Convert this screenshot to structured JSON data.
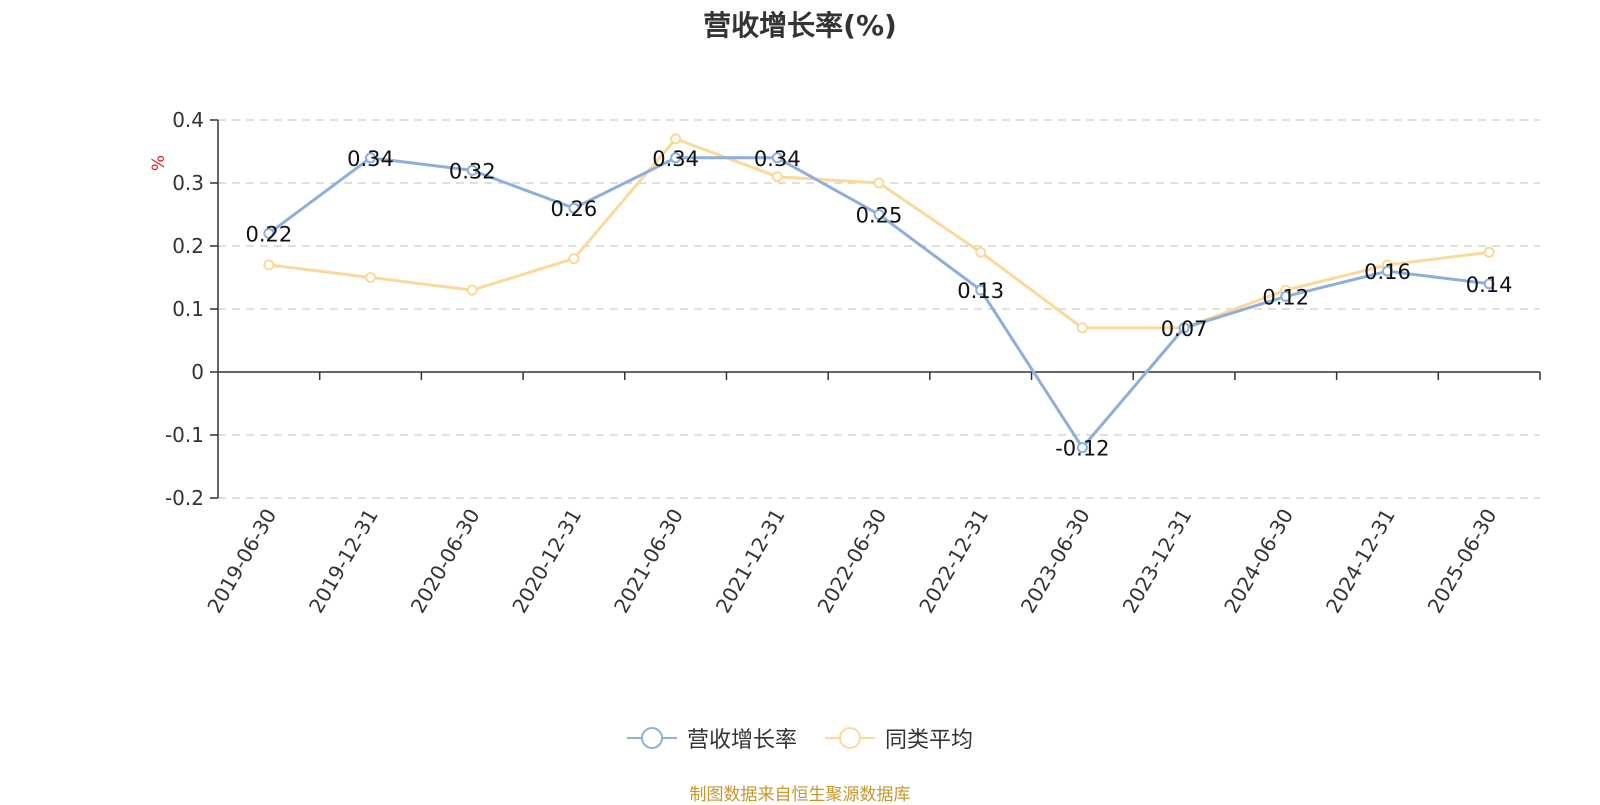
{
  "chart_data": {
    "type": "line",
    "title": "营收增长率(%)",
    "ylabel": "%",
    "xlabel": "",
    "ylim": [
      -0.2,
      0.4
    ],
    "yticks": [
      -0.2,
      -0.1,
      0,
      0.1,
      0.2,
      0.3,
      0.4
    ],
    "ytick_labels": [
      "-0.2",
      "-0.1",
      "0",
      "0.1",
      "0.2",
      "0.3",
      "0.4"
    ],
    "grid": true,
    "legend_position": "bottom",
    "categories": [
      "2019-06-30",
      "2019-12-31",
      "2020-06-30",
      "2020-12-31",
      "2021-06-30",
      "2021-12-31",
      "2022-06-30",
      "2022-12-31",
      "2023-06-30",
      "2023-12-31",
      "2024-06-30",
      "2024-12-31",
      "2025-06-30"
    ],
    "series": [
      {
        "name": "营收增长率",
        "color": "#8eaedb",
        "values": [
          0.22,
          0.34,
          0.32,
          0.26,
          0.34,
          0.34,
          0.25,
          0.13,
          -0.12,
          0.07,
          0.12,
          0.16,
          0.14
        ],
        "labels": [
          "0.22",
          "0.34",
          "0.32",
          "0.26",
          "0.34",
          "0.34",
          "0.25",
          "0.13",
          "-0.12",
          "0.07",
          "0.12",
          "0.16",
          "0.14"
        ]
      },
      {
        "name": "同类平均",
        "color": "#fcd99a",
        "values": [
          0.17,
          0.15,
          0.13,
          0.18,
          0.37,
          0.31,
          0.3,
          0.19,
          0.07,
          0.07,
          0.13,
          0.17,
          0.19
        ]
      }
    ]
  },
  "source": "制图数据来自恒生聚源数据库"
}
